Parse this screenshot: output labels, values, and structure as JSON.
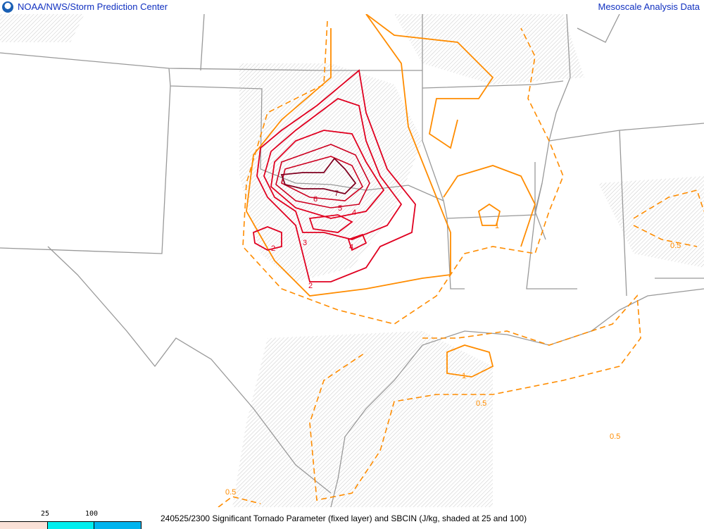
{
  "header": {
    "title_left": "NOAA/NWS/Storm Prediction Center",
    "title_right": "Mesoscale Analysis Data",
    "logo_icon": "noaa-logo"
  },
  "footer": {
    "caption": "240525/2300 Significant Tornado Parameter (fixed layer) and SBCIN (J/kg, shaded at 25 and 100)",
    "legend": {
      "ticks": [
        "25",
        "100"
      ],
      "colors": [
        "#fbe1d7",
        "#00eeee",
        "#00b4ee"
      ]
    }
  },
  "map": {
    "colors": {
      "borders": "#999999",
      "stp_low": "#ff8c00",
      "stp_mid": "#e00000",
      "stp_high": "#800020",
      "hatch": "#bbbbbb"
    },
    "contour_labels": [
      "7",
      "6",
      "5",
      "4",
      "3",
      "2",
      "4",
      "2",
      "1",
      "1",
      "0.5",
      "0.5",
      "0.5",
      "0.5"
    ]
  }
}
